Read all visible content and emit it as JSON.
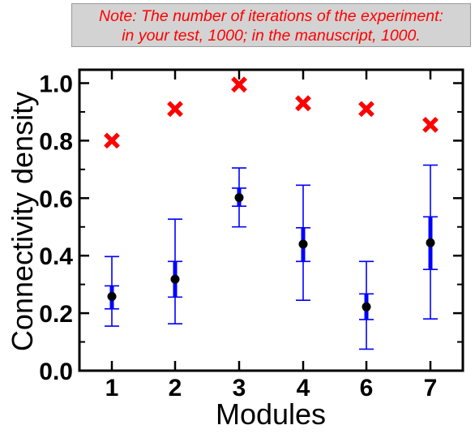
{
  "note": {
    "line1": "Note: The number of iterations of the experiment:",
    "line2": "in your test, 1000; in the manuscript, 1000."
  },
  "colors": {
    "marker_x": "#ff0000",
    "mean_marker": "#000000",
    "error_bar": "#0000ff",
    "note_text": "#ff0000",
    "note_background": "#d3d3d3"
  },
  "chart_data": {
    "type": "scatter",
    "xlabel": "Modules",
    "ylabel": "Connectivity density",
    "ylim": [
      0.0,
      1.05
    ],
    "yticks": [
      "0.0",
      "0.2",
      "0.4",
      "0.6",
      "0.8",
      "1.0"
    ],
    "categories": [
      "1",
      "2",
      "3",
      "4",
      "6",
      "7"
    ],
    "grid": false,
    "series": [
      {
        "marker": "x",
        "values": [
          0.8,
          0.91,
          0.995,
          0.93,
          0.91,
          0.855
        ]
      },
      {
        "marker": "circle",
        "values": [
          0.258,
          0.318,
          0.602,
          0.44,
          0.222,
          0.445
        ],
        "whisker_low": [
          0.155,
          0.163,
          0.5,
          0.245,
          0.075,
          0.18
        ],
        "whisker_high": [
          0.397,
          0.527,
          0.705,
          0.645,
          0.38,
          0.715
        ],
        "inner_low": [
          0.215,
          0.256,
          0.572,
          0.38,
          0.178,
          0.352
        ],
        "inner_high": [
          0.295,
          0.38,
          0.635,
          0.497,
          0.267,
          0.535
        ]
      }
    ]
  }
}
